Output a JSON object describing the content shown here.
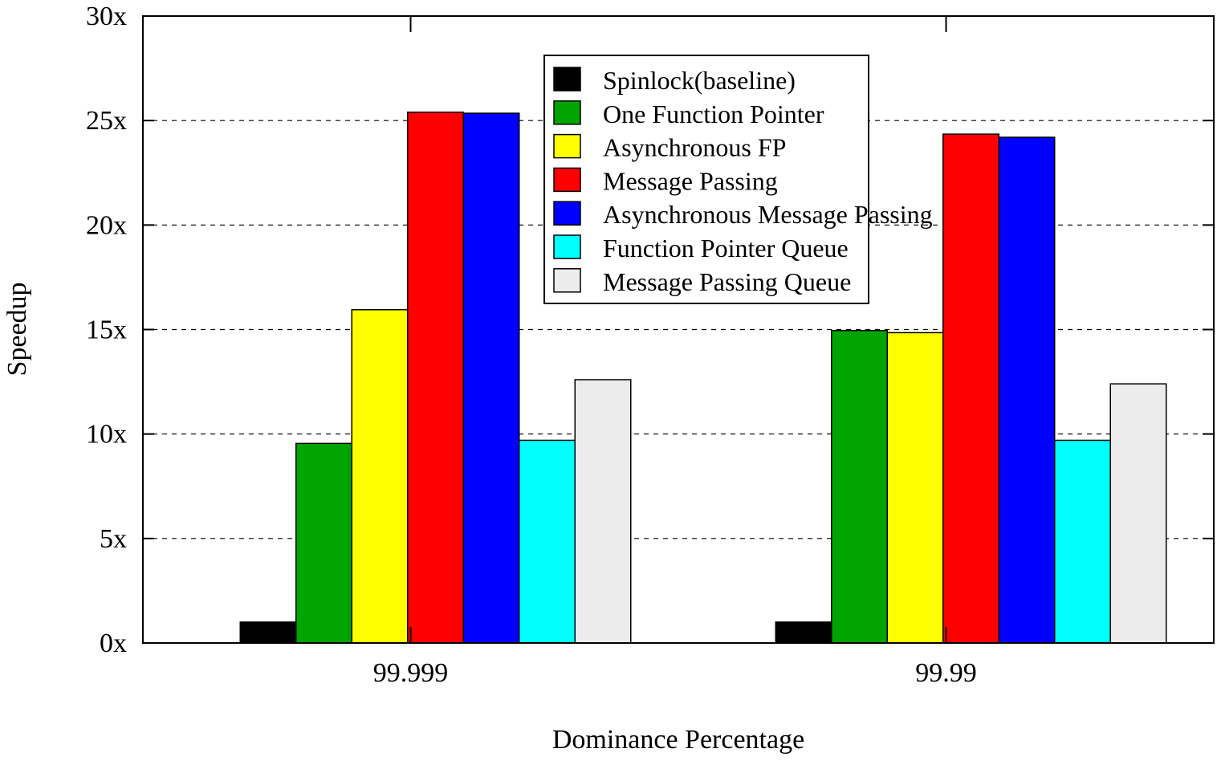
{
  "chart_data": {
    "type": "bar",
    "title": "",
    "xlabel": "Dominance Percentage",
    "ylabel": "Speedup",
    "categories": [
      "99.999",
      "99.99"
    ],
    "ylim": [
      0,
      30
    ],
    "yticks": [
      0,
      5,
      10,
      15,
      20,
      25,
      30
    ],
    "ytick_suffix": "x",
    "ytick_labels": [
      "0x",
      "5x",
      "10x",
      "15x",
      "20x",
      "25x",
      "30x"
    ],
    "grid": "horizontal dashed",
    "legend_position": "top-center",
    "series": [
      {
        "name": "Spinlock(baseline)",
        "color": "#000000",
        "values": [
          1.0,
          1.0
        ]
      },
      {
        "name": "One Function Pointer",
        "color": "#00a400",
        "values": [
          9.55,
          14.95
        ]
      },
      {
        "name": "Asynchronous FP",
        "color": "#ffff00",
        "values": [
          15.95,
          14.85
        ]
      },
      {
        "name": "Message Passing",
        "color": "#ff0000",
        "values": [
          25.4,
          24.35
        ]
      },
      {
        "name": "Asynchronous Message Passing",
        "color": "#0000ff",
        "values": [
          25.35,
          24.2
        ]
      },
      {
        "name": "Function Pointer Queue",
        "color": "#00ffff",
        "values": [
          9.7,
          9.7
        ]
      },
      {
        "name": "Message Passing Queue",
        "color": "#ececec",
        "values": [
          12.6,
          12.4
        ]
      }
    ]
  }
}
